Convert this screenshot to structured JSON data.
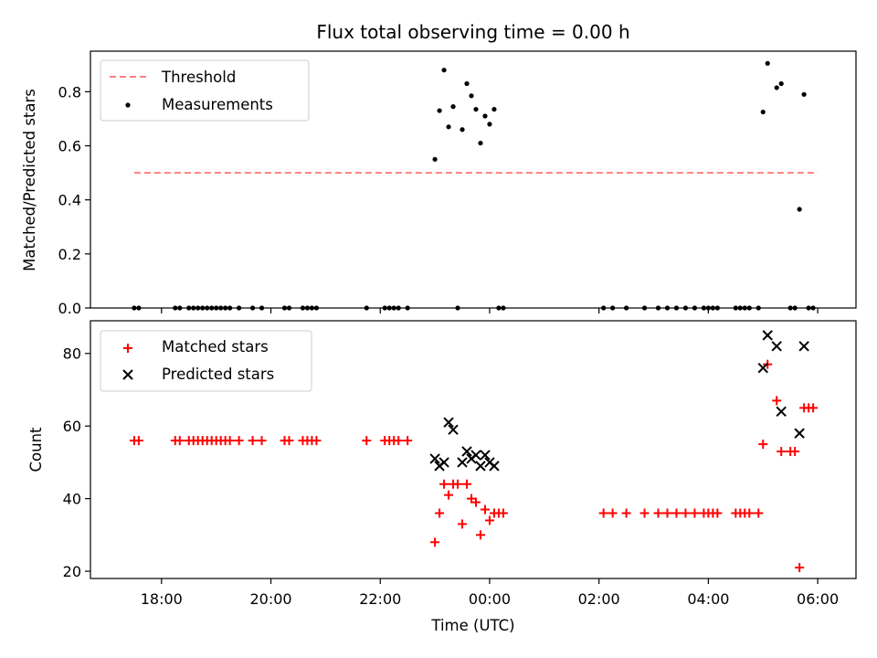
{
  "chart_data": [
    {
      "type": "scatter",
      "title": "Flux total observing time = 0.00 h",
      "xlabel": "",
      "ylabel": "Matched/Predicted stars",
      "ylim": [
        0,
        0.95
      ],
      "yticks": [
        0.0,
        0.2,
        0.4,
        0.6,
        0.8
      ],
      "ytick_labels": [
        "0.0",
        "0.2",
        "0.4",
        "0.6",
        "0.8"
      ],
      "grid": false,
      "legend": "top-left",
      "threshold": {
        "name": "Threshold",
        "value": 0.5,
        "x_start": "17:30",
        "x_end": "06:00",
        "color": "#ff7f7f"
      },
      "series": [
        {
          "name": "Measurements",
          "color": "#000000",
          "marker": "dot",
          "points": [
            [
              "17:30",
              0
            ],
            [
              "17:35",
              0
            ],
            [
              "18:15",
              0
            ],
            [
              "18:20",
              0
            ],
            [
              "18:30",
              0
            ],
            [
              "18:35",
              0
            ],
            [
              "18:40",
              0
            ],
            [
              "18:45",
              0
            ],
            [
              "18:50",
              0
            ],
            [
              "18:55",
              0
            ],
            [
              "19:00",
              0
            ],
            [
              "19:05",
              0
            ],
            [
              "19:10",
              0
            ],
            [
              "19:15",
              0
            ],
            [
              "19:25",
              0
            ],
            [
              "19:40",
              0
            ],
            [
              "19:50",
              0
            ],
            [
              "20:15",
              0
            ],
            [
              "20:20",
              0
            ],
            [
              "20:35",
              0
            ],
            [
              "20:40",
              0
            ],
            [
              "20:45",
              0
            ],
            [
              "20:50",
              0
            ],
            [
              "21:45",
              0
            ],
            [
              "22:05",
              0
            ],
            [
              "22:10",
              0
            ],
            [
              "22:15",
              0
            ],
            [
              "22:20",
              0
            ],
            [
              "22:30",
              0
            ],
            [
              "23:00",
              0.55
            ],
            [
              "23:05",
              0.73
            ],
            [
              "23:10",
              0.88
            ],
            [
              "23:15",
              0.67
            ],
            [
              "23:20",
              0.745
            ],
            [
              "23:25",
              0
            ],
            [
              "23:30",
              0.66
            ],
            [
              "23:35",
              0.83
            ],
            [
              "23:40",
              0.785
            ],
            [
              "23:45",
              0.735
            ],
            [
              "23:50",
              0.61
            ],
            [
              "23:55",
              0.71
            ],
            [
              "00:00",
              0.68
            ],
            [
              "00:05",
              0.735
            ],
            [
              "00:10",
              0
            ],
            [
              "00:15",
              0
            ],
            [
              "02:05",
              0
            ],
            [
              "02:15",
              0
            ],
            [
              "02:30",
              0
            ],
            [
              "02:50",
              0
            ],
            [
              "03:05",
              0
            ],
            [
              "03:15",
              0
            ],
            [
              "03:25",
              0
            ],
            [
              "03:35",
              0
            ],
            [
              "03:45",
              0
            ],
            [
              "03:55",
              0
            ],
            [
              "04:00",
              0
            ],
            [
              "04:05",
              0
            ],
            [
              "04:10",
              0
            ],
            [
              "04:30",
              0
            ],
            [
              "04:35",
              0
            ],
            [
              "04:40",
              0
            ],
            [
              "04:45",
              0
            ],
            [
              "04:55",
              0
            ],
            [
              "05:00",
              0.725
            ],
            [
              "05:05",
              0.905
            ],
            [
              "05:15",
              0.815
            ],
            [
              "05:20",
              0.83
            ],
            [
              "05:30",
              0
            ],
            [
              "05:35",
              0
            ],
            [
              "05:40",
              0.365
            ],
            [
              "05:45",
              0.79
            ],
            [
              "05:50",
              0
            ],
            [
              "05:55",
              0
            ]
          ]
        }
      ]
    },
    {
      "type": "scatter",
      "title": "",
      "xlabel": "Time (UTC)",
      "ylabel": "Count",
      "ylim": [
        18,
        89
      ],
      "yticks": [
        20,
        40,
        60,
        80
      ],
      "ytick_labels": [
        "20",
        "40",
        "60",
        "80"
      ],
      "xticks": [
        "18:00",
        "20:00",
        "22:00",
        "00:00",
        "02:00",
        "04:00",
        "06:00"
      ],
      "xrange_hours_from_midnight": [
        -7.3,
        6.7
      ],
      "grid": false,
      "legend": "top-left",
      "series": [
        {
          "name": "Matched stars",
          "color": "#ff0000",
          "marker": "plus",
          "points": [
            [
              "17:30",
              56
            ],
            [
              "17:35",
              56
            ],
            [
              "18:15",
              56
            ],
            [
              "18:20",
              56
            ],
            [
              "18:30",
              56
            ],
            [
              "18:35",
              56
            ],
            [
              "18:40",
              56
            ],
            [
              "18:45",
              56
            ],
            [
              "18:50",
              56
            ],
            [
              "18:55",
              56
            ],
            [
              "19:00",
              56
            ],
            [
              "19:05",
              56
            ],
            [
              "19:10",
              56
            ],
            [
              "19:15",
              56
            ],
            [
              "19:25",
              56
            ],
            [
              "19:40",
              56
            ],
            [
              "19:50",
              56
            ],
            [
              "20:15",
              56
            ],
            [
              "20:20",
              56
            ],
            [
              "20:35",
              56
            ],
            [
              "20:40",
              56
            ],
            [
              "20:45",
              56
            ],
            [
              "20:50",
              56
            ],
            [
              "21:45",
              56
            ],
            [
              "22:05",
              56
            ],
            [
              "22:10",
              56
            ],
            [
              "22:15",
              56
            ],
            [
              "22:20",
              56
            ],
            [
              "22:30",
              56
            ],
            [
              "23:00",
              28
            ],
            [
              "23:05",
              36
            ],
            [
              "23:10",
              44
            ],
            [
              "23:15",
              41
            ],
            [
              "23:20",
              44
            ],
            [
              "23:25",
              44
            ],
            [
              "23:30",
              33
            ],
            [
              "23:35",
              44
            ],
            [
              "23:40",
              40
            ],
            [
              "23:45",
              39
            ],
            [
              "23:50",
              30
            ],
            [
              "23:55",
              37
            ],
            [
              "00:00",
              34
            ],
            [
              "00:05",
              36
            ],
            [
              "00:10",
              36
            ],
            [
              "00:15",
              36
            ],
            [
              "02:05",
              36
            ],
            [
              "02:15",
              36
            ],
            [
              "02:30",
              36
            ],
            [
              "02:50",
              36
            ],
            [
              "03:05",
              36
            ],
            [
              "03:15",
              36
            ],
            [
              "03:25",
              36
            ],
            [
              "03:35",
              36
            ],
            [
              "03:45",
              36
            ],
            [
              "03:55",
              36
            ],
            [
              "04:00",
              36
            ],
            [
              "04:05",
              36
            ],
            [
              "04:10",
              36
            ],
            [
              "04:30",
              36
            ],
            [
              "04:35",
              36
            ],
            [
              "04:40",
              36
            ],
            [
              "04:45",
              36
            ],
            [
              "04:55",
              36
            ],
            [
              "05:00",
              55
            ],
            [
              "05:05",
              77
            ],
            [
              "05:15",
              67
            ],
            [
              "05:20",
              53
            ],
            [
              "05:30",
              53
            ],
            [
              "05:35",
              53
            ],
            [
              "05:40",
              21
            ],
            [
              "05:45",
              65
            ],
            [
              "05:50",
              65
            ],
            [
              "05:55",
              65
            ]
          ]
        },
        {
          "name": "Predicted stars",
          "color": "#000000",
          "marker": "x",
          "points": [
            [
              "23:00",
              51
            ],
            [
              "23:05",
              49
            ],
            [
              "23:10",
              50
            ],
            [
              "23:15",
              61
            ],
            [
              "23:20",
              59
            ],
            [
              "23:30",
              50
            ],
            [
              "23:35",
              53
            ],
            [
              "23:40",
              51
            ],
            [
              "23:45",
              52
            ],
            [
              "23:50",
              49
            ],
            [
              "23:55",
              52
            ],
            [
              "00:00",
              50
            ],
            [
              "00:05",
              49
            ],
            [
              "05:00",
              76
            ],
            [
              "05:05",
              85
            ],
            [
              "05:15",
              82
            ],
            [
              "05:20",
              64
            ],
            [
              "05:40",
              58
            ],
            [
              "05:45",
              82
            ]
          ]
        }
      ]
    }
  ]
}
